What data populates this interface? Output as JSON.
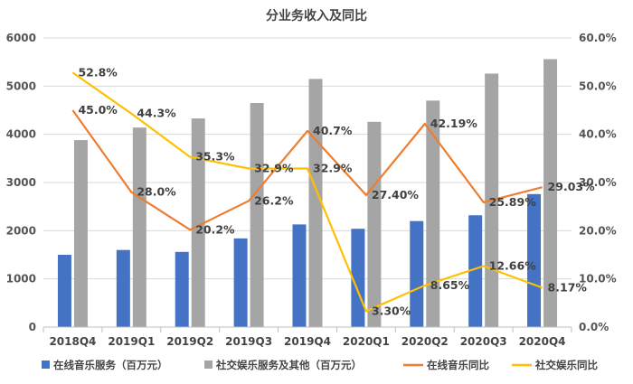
{
  "chart_data": {
    "type": "bar",
    "title": "分业务收入及同比",
    "categories": [
      "2018Q4",
      "2019Q1",
      "2019Q2",
      "2019Q3",
      "2019Q4",
      "2020Q1",
      "2020Q2",
      "2020Q3",
      "2020Q4"
    ],
    "y_left": {
      "min": 0,
      "max": 6000,
      "ticks": [
        "0",
        "1000",
        "2000",
        "3000",
        "4000",
        "5000",
        "6000"
      ]
    },
    "y_right": {
      "min": 0,
      "max": 60,
      "ticks": [
        "0.0%",
        "10.0%",
        "20.0%",
        "30.0%",
        "40.0%",
        "50.0%",
        "60.0%"
      ]
    },
    "grid": true,
    "legend_position": "bottom",
    "series": [
      {
        "name": "在线音乐服务（百万元）",
        "type": "bar",
        "axis": "left",
        "color": "#4472C4",
        "values": [
          1500,
          1600,
          1560,
          1840,
          2130,
          2040,
          2200,
          2320,
          2760
        ]
      },
      {
        "name": "社交娱乐服务及其他（百万元）",
        "type": "bar",
        "axis": "left",
        "color": "#A5A5A5",
        "values": [
          3880,
          4140,
          4330,
          4650,
          5150,
          4260,
          4700,
          5260,
          5560
        ]
      },
      {
        "name": "在线音乐同比",
        "type": "line",
        "axis": "right",
        "color": "#ED7D31",
        "values": [
          45.0,
          28.0,
          20.2,
          26.2,
          40.7,
          27.4,
          42.19,
          25.89,
          29.03
        ],
        "labels": [
          "45.0%",
          "28.0%",
          "20.2%",
          "26.2%",
          "40.7%",
          "27.40%",
          "42.19%",
          "25.89%",
          "29.03%"
        ]
      },
      {
        "name": "社交娱乐同比",
        "type": "line",
        "axis": "right",
        "color": "#FFC000",
        "values": [
          52.8,
          44.3,
          35.3,
          32.9,
          32.9,
          3.3,
          8.65,
          12.66,
          8.17
        ],
        "labels": [
          "52.8%",
          "44.3%",
          "35.3%",
          "32.9%",
          "32.9%",
          "3.30%",
          "8.65%",
          "12.66%",
          "8.17%"
        ]
      }
    ]
  }
}
